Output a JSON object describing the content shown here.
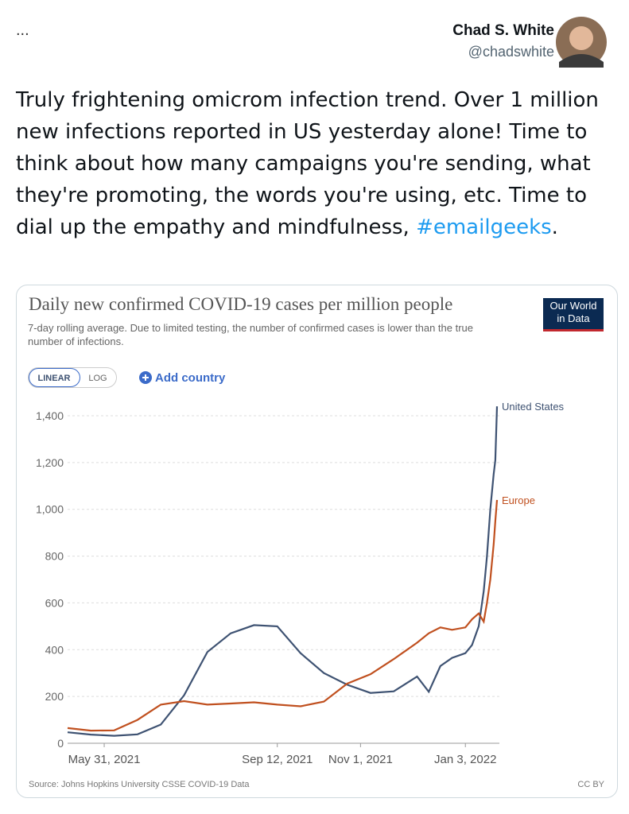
{
  "tweet": {
    "menu": "...",
    "name": "Chad S. White",
    "handle": "@chadswhite",
    "text": "Truly frightening omicrom infection trend. Over 1 million new infections reported in US yesterday alone! Time to think about how many campaigns you're sending, what they're promoting, the words you're using, etc. Time to dial up the empathy and mindfulness, ",
    "hashtag": "#emailgeeks",
    "text_end": "."
  },
  "controls": {
    "linear": "LINEAR",
    "log": "LOG",
    "add_country": "Add country"
  },
  "logo": [
    "Our World",
    "in Data"
  ],
  "chart_data": {
    "type": "line",
    "title": "Daily new confirmed COVID-19 cases per million people",
    "subtitle": "7-day rolling average. Due to limited testing, the number of confirmed cases is lower than the true number of infections.",
    "source": "Source: Johns Hopkins University CSSE COVID-19 Data",
    "license": "CC BY",
    "x": [
      "2021-05-09",
      "2021-05-23",
      "2021-06-06",
      "2021-06-20",
      "2021-07-04",
      "2021-07-18",
      "2021-08-01",
      "2021-08-15",
      "2021-08-29",
      "2021-09-12",
      "2021-09-26",
      "2021-10-10",
      "2021-10-24",
      "2021-11-07",
      "2021-11-21",
      "2021-12-05",
      "2021-12-12",
      "2021-12-19",
      "2021-12-26",
      "2022-01-03",
      "2022-01-07",
      "2022-01-11",
      "2022-01-14",
      "2022-01-16",
      "2022-01-18",
      "2022-01-20",
      "2022-01-21",
      "2022-01-22"
    ],
    "series": [
      {
        "name": "United States",
        "color": "#3e5272",
        "values": [
          47,
          37,
          32,
          38,
          80,
          205,
          390,
          470,
          505,
          500,
          385,
          300,
          250,
          215,
          222,
          285,
          220,
          330,
          365,
          385,
          420,
          500,
          650,
          800,
          1000,
          1150,
          1210,
          1440
        ]
      },
      {
        "name": "Europe",
        "color": "#c0501f",
        "values": [
          65,
          54,
          55,
          100,
          165,
          180,
          165,
          170,
          175,
          165,
          158,
          178,
          255,
          295,
          360,
          430,
          470,
          495,
          485,
          495,
          530,
          555,
          520,
          600,
          700,
          850,
          950,
          1040
        ]
      }
    ],
    "xlim": [
      "2021-05-09",
      "2022-01-22"
    ],
    "xticks": [
      {
        "value": "2021-05-31",
        "label": "May 31, 2021"
      },
      {
        "value": "2021-09-12",
        "label": "Sep 12, 2021"
      },
      {
        "value": "2021-11-01",
        "label": "Nov 1, 2021"
      },
      {
        "value": "2022-01-03",
        "label": "Jan 3, 2022"
      }
    ],
    "ylim": [
      0,
      1400
    ],
    "yticks": [
      0,
      200,
      400,
      600,
      800,
      {
        "value": 1000,
        "label": "1,000"
      },
      {
        "value": 1200,
        "label": "1,200"
      },
      {
        "value": 1400,
        "label": "1,400"
      }
    ],
    "grid": true
  }
}
